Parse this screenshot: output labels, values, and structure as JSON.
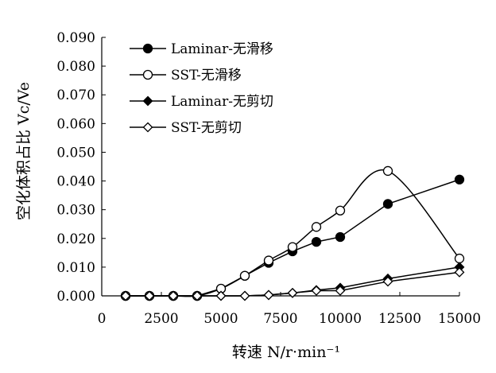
{
  "chart_data": {
    "type": "line",
    "xlabel": "转速 N/r·min⁻¹",
    "ylabel": "空化体积占比 Vc/Ve",
    "xlim": [
      0,
      15000
    ],
    "ylim": [
      0,
      0.09
    ],
    "x_ticks": [
      "0",
      "2500",
      "5000",
      "7500",
      "10000",
      "12500",
      "15000"
    ],
    "y_ticks": [
      "0.000",
      "0.010",
      "0.020",
      "0.030",
      "0.040",
      "0.050",
      "0.060",
      "0.070",
      "0.080",
      "0.090"
    ],
    "grid": false,
    "legend_position": "top-left",
    "series": [
      {
        "name": "Laminar-无滑移",
        "marker": "filled-circle",
        "curve": "straight",
        "points": [
          [
            1000,
            0
          ],
          [
            2000,
            0
          ],
          [
            3000,
            0
          ],
          [
            4000,
            0
          ],
          [
            5000,
            0.0025
          ],
          [
            6000,
            0.007
          ],
          [
            7000,
            0.0115
          ],
          [
            8000,
            0.0155
          ],
          [
            9000,
            0.0188
          ],
          [
            10000,
            0.0205
          ],
          [
            12000,
            0.032
          ],
          [
            15000,
            0.0405
          ]
        ]
      },
      {
        "name": "SST-无滑移",
        "marker": "open-circle",
        "curve": "smooth",
        "points": [
          [
            1000,
            0
          ],
          [
            2000,
            0
          ],
          [
            3000,
            0
          ],
          [
            4000,
            0
          ],
          [
            5000,
            0.0025
          ],
          [
            6000,
            0.007
          ],
          [
            7000,
            0.0123
          ],
          [
            8000,
            0.017
          ],
          [
            9000,
            0.024
          ],
          [
            10000,
            0.0297
          ],
          [
            12000,
            0.0435
          ],
          [
            15000,
            0.013
          ]
        ]
      },
      {
        "name": "Laminar-无剪切",
        "marker": "filled-diamond",
        "curve": "straight",
        "points": [
          [
            1000,
            0
          ],
          [
            2000,
            0
          ],
          [
            3000,
            0
          ],
          [
            4000,
            0
          ],
          [
            5000,
            0
          ],
          [
            6000,
            0
          ],
          [
            7000,
            0.0003
          ],
          [
            8000,
            0.001
          ],
          [
            9000,
            0.002
          ],
          [
            10000,
            0.0028
          ],
          [
            12000,
            0.006
          ],
          [
            15000,
            0.01
          ]
        ]
      },
      {
        "name": "SST-无剪切",
        "marker": "open-diamond",
        "curve": "straight",
        "points": [
          [
            1000,
            0
          ],
          [
            2000,
            0
          ],
          [
            3000,
            0
          ],
          [
            4000,
            0
          ],
          [
            5000,
            0
          ],
          [
            6000,
            0
          ],
          [
            7000,
            0.0003
          ],
          [
            8000,
            0.001
          ],
          [
            9000,
            0.0018
          ],
          [
            10000,
            0.0018
          ],
          [
            12000,
            0.005
          ],
          [
            15000,
            0.0082
          ]
        ]
      }
    ]
  }
}
